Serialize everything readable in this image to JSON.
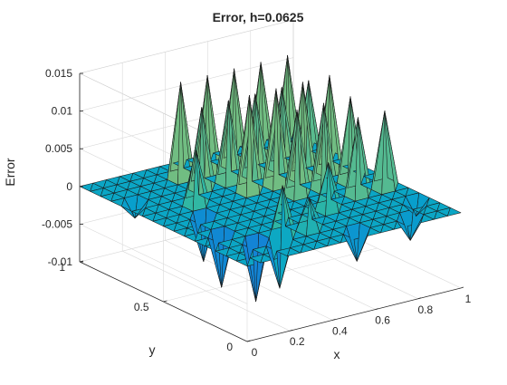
{
  "chart_data": {
    "type": "surface",
    "title": "Error, h=0.0625",
    "xlabel": "x",
    "ylabel": "y",
    "zlabel": "Error",
    "xlim": [
      0,
      1
    ],
    "ylim": [
      0,
      1
    ],
    "zlim": [
      -0.01,
      0.015
    ],
    "xticks": [
      0,
      0.2,
      0.4,
      0.6,
      0.8,
      1
    ],
    "xticklabels": [
      "0",
      "0.2",
      "0.4",
      "0.6",
      "0.8",
      "1"
    ],
    "yticks": [
      0,
      0.5,
      1
    ],
    "yticklabels": [
      "0",
      "0.5",
      "1"
    ],
    "zticks": [
      -0.01,
      -0.005,
      0,
      0.005,
      0.01,
      0.015
    ],
    "zticklabels": [
      "-0.01",
      "-0.005",
      "0",
      "0.005",
      "0.01",
      "0.015"
    ],
    "grid": true,
    "colormap": "parula",
    "colormap_stops": [
      "#352a87",
      "#0f5cdd",
      "#1481d6",
      "#06a4ca",
      "#2eb7a4",
      "#87bf77",
      "#d1bb59",
      "#fec832",
      "#f9fb0e"
    ],
    "grid_h": 0.0625,
    "grid_points": 17,
    "surface_description": "Piecewise-linear error surface on a 17x17 grid: zero on boundary, spikes of about 0.0125 at alternating interior nodes, dips of about -0.006 to -0.008 in the lower-left region and at a few scattered nodes.",
    "peaks": [
      {
        "x": 0.375,
        "y": 0.875,
        "z": 0.0125
      },
      {
        "x": 0.5,
        "y": 0.875,
        "z": 0.0125
      },
      {
        "x": 0.625,
        "y": 0.875,
        "z": 0.0125
      },
      {
        "x": 0.75,
        "y": 0.875,
        "z": 0.0125
      },
      {
        "x": 0.875,
        "y": 0.875,
        "z": 0.0125
      },
      {
        "x": 0.375,
        "y": 0.75,
        "z": 0.0105
      },
      {
        "x": 0.5,
        "y": 0.75,
        "z": 0.0105
      },
      {
        "x": 0.625,
        "y": 0.75,
        "z": 0.0105
      },
      {
        "x": 0.75,
        "y": 0.75,
        "z": 0.0105
      },
      {
        "x": 0.875,
        "y": 0.75,
        "z": 0.0105
      },
      {
        "x": 0.25,
        "y": 0.625,
        "z": 0.007
      },
      {
        "x": 0.5,
        "y": 0.625,
        "z": 0.0125
      },
      {
        "x": 0.625,
        "y": 0.625,
        "z": 0.0125
      },
      {
        "x": 0.75,
        "y": 0.625,
        "z": 0.0125
      },
      {
        "x": 0.875,
        "y": 0.625,
        "z": 0.0125
      },
      {
        "x": 0.625,
        "y": 0.5,
        "z": 0.011
      },
      {
        "x": 0.75,
        "y": 0.5,
        "z": 0.011
      },
      {
        "x": 0.875,
        "y": 0.5,
        "z": 0.011
      },
      {
        "x": 0.8125,
        "y": 0.375,
        "z": 0.01
      },
      {
        "x": 0.9375,
        "y": 0.375,
        "z": 0.01
      },
      {
        "x": 0.625,
        "y": 0.3125,
        "z": 0.006
      },
      {
        "x": 0.3125,
        "y": 0.1875,
        "z": 0.0065
      },
      {
        "x": 0.4375,
        "y": 0.1875,
        "z": 0.004
      }
    ],
    "dips": [
      {
        "x": 0.0625,
        "y": 0.75,
        "z": -0.002
      },
      {
        "x": 0.1875,
        "y": 0.5,
        "z": -0.006
      },
      {
        "x": 0.125,
        "y": 0.3125,
        "z": -0.007
      },
      {
        "x": 0.1875,
        "y": 0.1875,
        "z": -0.008
      },
      {
        "x": 0.25,
        "y": 0.125,
        "z": -0.006
      },
      {
        "x": 0.5625,
        "y": 0.0625,
        "z": -0.004
      },
      {
        "x": 0.8125,
        "y": 0.0625,
        "z": -0.003
      },
      {
        "x": 0.9375,
        "y": 0.1875,
        "z": -0.002
      }
    ]
  }
}
